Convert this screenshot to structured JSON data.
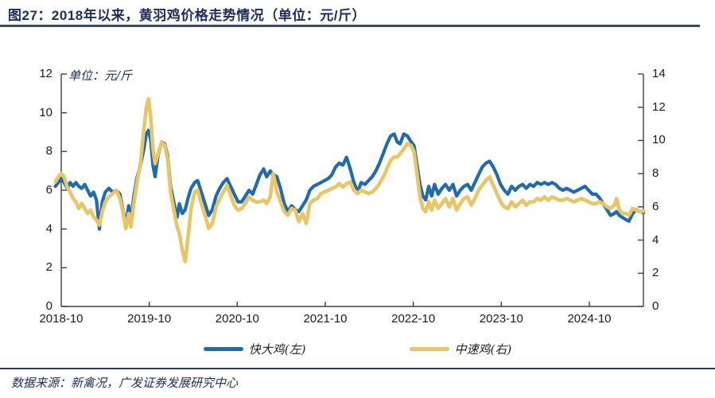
{
  "title": "图27：2018年以来，黄羽鸡价格走势情况（单位：元/斤）",
  "footer": {
    "source": "数据来源：新禽况，广发证券发展研究中心"
  },
  "colors": {
    "navy": "#1c2c5e",
    "axis": "#404040",
    "line_blue": "#1F6BAD",
    "line_yellow": "#E8C667"
  },
  "chart_data": {
    "type": "line",
    "unit_label": "单位：元/斤",
    "x_unit": "months since 2018-10",
    "legend_position": "bottom",
    "grid": false,
    "left_axis": {
      "min": 0,
      "max": 12,
      "ticks": [
        0,
        2,
        4,
        6,
        8,
        10,
        12
      ]
    },
    "right_axis": {
      "min": 0,
      "max": 14,
      "ticks": [
        0,
        2,
        4,
        6,
        8,
        10,
        12,
        14
      ]
    },
    "x_ticks": [
      {
        "label": "2018-10",
        "m": 0
      },
      {
        "label": "2019-10",
        "m": 12
      },
      {
        "label": "2020-10",
        "m": 24
      },
      {
        "label": "2021-10",
        "m": 36
      },
      {
        "label": "2022-10",
        "m": 48
      },
      {
        "label": "2023-10",
        "m": 60
      },
      {
        "label": "2024-10",
        "m": 72
      }
    ],
    "x": [
      -0.8,
      -0.4,
      0,
      0.4,
      0.8,
      1.2,
      1.6,
      2,
      2.4,
      2.8,
      3.2,
      3.6,
      4,
      4.4,
      4.8,
      5.2,
      5.6,
      6,
      6.5,
      7,
      7.5,
      8,
      8.4,
      8.8,
      9.2,
      9.5,
      9.9,
      10.3,
      10.8,
      11.2,
      11.6,
      11.9,
      12.2,
      12.5,
      12.8,
      13.2,
      13.7,
      14.1,
      14.5,
      14.9,
      15.4,
      15.8,
      16.1,
      16.5,
      16.9,
      17.3,
      17.7,
      18.2,
      18.6,
      19.1,
      19.6,
      20.1,
      20.6,
      21.1,
      21.6,
      22.1,
      22.6,
      23.1,
      23.6,
      24.1,
      24.6,
      25.1,
      25.6,
      26.1,
      26.6,
      27.1,
      27.6,
      28,
      28.5,
      28.9,
      29.4,
      29.9,
      30.4,
      30.9,
      31.4,
      31.9,
      32.4,
      32.9,
      33.4,
      33.9,
      34.4,
      34.9,
      35.4,
      35.9,
      36.4,
      36.9,
      37.4,
      37.9,
      38.4,
      38.9,
      39.4,
      39.9,
      40.4,
      40.9,
      41.4,
      41.9,
      42.4,
      42.9,
      43.4,
      43.9,
      44.4,
      44.9,
      45.4,
      45.8,
      46.2,
      46.7,
      47.2,
      47.7,
      48.1,
      48.5,
      48.9,
      49.3,
      49.7,
      50.1,
      50.5,
      50.9,
      51.4,
      51.9,
      52.4,
      52.9,
      53.4,
      53.9,
      54.4,
      54.9,
      55.4,
      55.9,
      56.4,
      56.9,
      57.4,
      57.9,
      58.4,
      58.9,
      59.4,
      59.9,
      60.4,
      60.9,
      61.4,
      61.9,
      62.4,
      62.9,
      63.4,
      63.9,
      64.4,
      64.9,
      65.4,
      65.9,
      66.4,
      66.9,
      67.4,
      67.9,
      68.4,
      68.9,
      69.4,
      69.9,
      70.4,
      70.9,
      71.4,
      71.9,
      72.4,
      72.9,
      73.4,
      73.9,
      74.4,
      74.9,
      75.4,
      75.7,
      76.1,
      76.5,
      76.9,
      77.4,
      77.9,
      78.4,
      78.9,
      79.4
    ],
    "series": [
      {
        "name": "快大鸡(左)",
        "axis": "left",
        "color": "#1F6BAD",
        "width": 4.2,
        "values": [
          6.2,
          6.4,
          6.6,
          6.4,
          6.1,
          6.4,
          6.2,
          6.4,
          6.2,
          6.1,
          6.3,
          6.0,
          5.7,
          5.9,
          5.5,
          4.0,
          5.4,
          5.9,
          6.1,
          5.9,
          6.0,
          5.8,
          5.0,
          4.2,
          5.2,
          4.4,
          5.7,
          6.6,
          7.3,
          8.0,
          8.9,
          9.1,
          8.6,
          7.3,
          6.7,
          7.8,
          8.5,
          8.4,
          7.8,
          6.2,
          5.3,
          4.6,
          5.3,
          4.8,
          5.0,
          5.6,
          6.1,
          6.4,
          6.5,
          5.9,
          5.3,
          4.7,
          5.0,
          5.7,
          6.1,
          6.4,
          6.6,
          6.2,
          5.8,
          5.4,
          5.4,
          5.7,
          6.0,
          5.8,
          6.3,
          6.8,
          7.1,
          6.7,
          7.0,
          6.8,
          6.7,
          6.1,
          5.3,
          4.9,
          5.2,
          5.0,
          4.9,
          5.2,
          5.5,
          6.0,
          6.2,
          6.3,
          6.4,
          6.5,
          6.6,
          6.8,
          7.2,
          7.4,
          7.3,
          7.7,
          7.1,
          6.4,
          5.9,
          6.4,
          6.3,
          6.5,
          6.7,
          7.0,
          7.4,
          7.9,
          8.4,
          8.8,
          8.9,
          8.5,
          8.4,
          8.9,
          8.8,
          8.5,
          8.3,
          7.3,
          6.3,
          5.7,
          5.5,
          6.2,
          5.7,
          6.3,
          5.8,
          6.1,
          6.3,
          6.0,
          6.3,
          5.7,
          6.0,
          6.2,
          6.3,
          6.0,
          6.4,
          6.8,
          7.2,
          7.4,
          7.5,
          7.2,
          6.8,
          6.3,
          6.0,
          5.8,
          6.2,
          6.0,
          6.2,
          6.3,
          6.1,
          6.3,
          6.2,
          6.4,
          6.3,
          6.4,
          6.3,
          6.4,
          6.3,
          6.1,
          6.0,
          6.1,
          6.0,
          5.9,
          6.0,
          6.1,
          6.2,
          6.0,
          5.8,
          5.8,
          5.6,
          5.3,
          5.0,
          4.7,
          4.8,
          4.9,
          4.7,
          4.6,
          4.5,
          4.4,
          4.8,
          5.0,
          4.9,
          4.85
        ]
      },
      {
        "name": "中速鸡(右)",
        "axis": "right",
        "color": "#E8C667",
        "width": 4.6,
        "values": [
          7.5,
          7.8,
          8.0,
          7.8,
          7.2,
          6.9,
          6.5,
          6.3,
          5.9,
          6.2,
          5.9,
          5.6,
          5.8,
          5.4,
          5.2,
          4.9,
          5.7,
          6.3,
          6.6,
          6.8,
          7.0,
          6.5,
          5.7,
          4.7,
          5.6,
          4.8,
          6.2,
          7.4,
          8.6,
          10.4,
          12.0,
          12.5,
          11.4,
          9.5,
          8.6,
          9.2,
          9.9,
          9.7,
          8.9,
          6.9,
          5.7,
          4.8,
          4.4,
          3.4,
          2.7,
          4.2,
          5.9,
          6.9,
          7.0,
          6.2,
          5.5,
          4.7,
          5.0,
          6.0,
          6.5,
          6.9,
          7.3,
          6.7,
          6.1,
          5.8,
          5.9,
          6.2,
          6.6,
          6.4,
          6.3,
          6.3,
          6.4,
          6.2,
          6.6,
          8.0,
          6.9,
          6.3,
          5.7,
          5.5,
          5.9,
          5.8,
          5.1,
          5.6,
          5.0,
          6.2,
          6.4,
          6.5,
          6.8,
          6.9,
          7.0,
          7.1,
          7.2,
          7.4,
          7.2,
          7.4,
          7.5,
          7.0,
          6.8,
          7.0,
          6.9,
          6.8,
          6.9,
          7.1,
          7.4,
          7.8,
          8.3,
          8.8,
          9.0,
          9.0,
          9.2,
          9.5,
          9.8,
          9.7,
          9.3,
          8.0,
          6.6,
          5.9,
          5.7,
          6.3,
          5.8,
          6.4,
          5.9,
          6.2,
          6.5,
          6.0,
          6.5,
          5.8,
          6.2,
          6.5,
          6.6,
          6.1,
          6.5,
          7.0,
          7.3,
          7.6,
          7.8,
          7.3,
          6.8,
          6.3,
          6.0,
          5.9,
          6.3,
          6.0,
          6.2,
          6.4,
          6.1,
          6.3,
          6.3,
          6.5,
          6.4,
          6.6,
          6.4,
          6.6,
          6.5,
          6.4,
          6.4,
          6.5,
          6.4,
          6.3,
          6.4,
          6.5,
          6.4,
          6.3,
          6.2,
          6.2,
          6.3,
          6.2,
          6.0,
          5.9,
          6.1,
          6.5,
          5.8,
          5.6,
          5.6,
          5.5,
          5.9,
          5.8,
          5.7,
          5.75
        ]
      }
    ]
  }
}
